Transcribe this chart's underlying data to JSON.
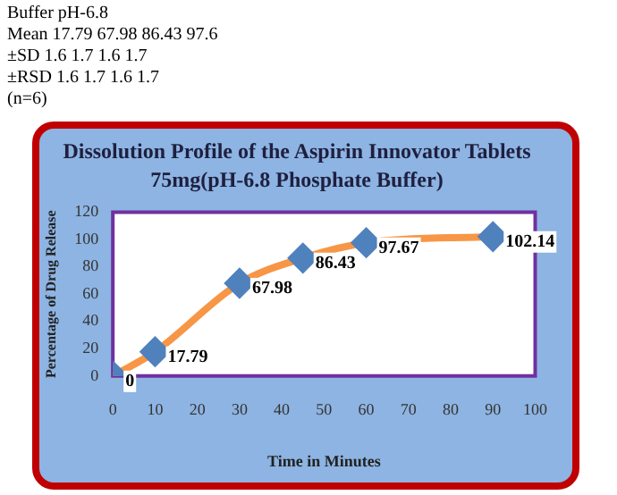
{
  "chart_data": {
    "type": "line",
    "title": "Dissolution Profile of the Aspirin Innovator Tablets",
    "subtitle": "75mg(pH-6.8 Phosphate Buffer)",
    "xlabel": "Time in Minutes",
    "ylabel": "Percentage of Drug Release",
    "annotations": [
      "Buffer pH-6.8",
      "Mean 17.79 67.98 86.43 97.6",
      "±SD 1.6 1.7 1.6 1.7",
      "±RSD 1.6 1.7 1.6 1.7",
      "(n=6)"
    ],
    "x": [
      0,
      10,
      30,
      45,
      60,
      90
    ],
    "series": [
      {
        "color": "#f79646",
        "colors": [
          "#4f81bd",
          "#4f81bd",
          "#4f81bd",
          "#4f81bd",
          "#4f81bd",
          "#4f81bd"
        ],
        "values": [
          0,
          17.79,
          67.98,
          86.43,
          97.67,
          102.14
        ]
      }
    ],
    "marker": "diamond",
    "data_labels": true,
    "xlim": [
      0,
      100
    ],
    "xticks": [
      0,
      10,
      20,
      30,
      40,
      50,
      60,
      70,
      80,
      90,
      100
    ],
    "ylim": [
      0,
      120
    ],
    "yticks": [
      0,
      20,
      40,
      60,
      80,
      100,
      120
    ],
    "grid": false,
    "legend": false
  }
}
